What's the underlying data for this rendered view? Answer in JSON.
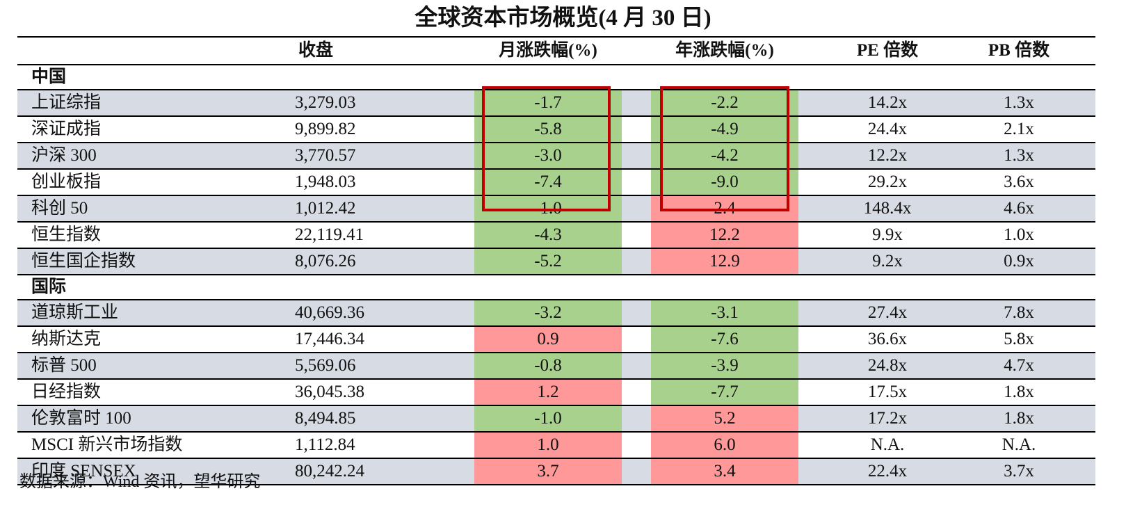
{
  "title": "全球资本市场概览(4 月 30 日)",
  "headers": {
    "close": "收盘",
    "month": "月涨跌幅(%)",
    "year": "年涨跌幅(%)",
    "pe": "PE 倍数",
    "pb": "PB 倍数"
  },
  "sections": [
    {
      "label": "中国",
      "rows": [
        {
          "name": "上证综指",
          "close": "3,279.03",
          "month": "-1.7",
          "year": "-2.2",
          "pe": "14.2x",
          "pb": "1.3x"
        },
        {
          "name": "深证成指",
          "close": "9,899.82",
          "month": "-5.8",
          "year": "-4.9",
          "pe": "24.4x",
          "pb": "2.1x"
        },
        {
          "name": "沪深 300",
          "close": "3,770.57",
          "month": "-3.0",
          "year": "-4.2",
          "pe": "12.2x",
          "pb": "1.3x"
        },
        {
          "name": "创业板指",
          "close": "1,948.03",
          "month": "-7.4",
          "year": "-9.0",
          "pe": "29.2x",
          "pb": "3.6x"
        },
        {
          "name": "科创 50",
          "close": "1,012.42",
          "month": "-1.0",
          "year": "2.4",
          "pe": "148.4x",
          "pb": "4.6x"
        },
        {
          "name": "恒生指数",
          "close": "22,119.41",
          "month": "-4.3",
          "year": "12.2",
          "pe": "9.9x",
          "pb": "1.0x"
        },
        {
          "name": "恒生国企指数",
          "close": "8,076.26",
          "month": "-5.2",
          "year": "12.9",
          "pe": "9.2x",
          "pb": "0.9x"
        }
      ]
    },
    {
      "label": "国际",
      "rows": [
        {
          "name": "道琼斯工业",
          "close": "40,669.36",
          "month": "-3.2",
          "year": "-3.1",
          "pe": "27.4x",
          "pb": "7.8x"
        },
        {
          "name": "纳斯达克",
          "close": "17,446.34",
          "month": "0.9",
          "year": "-7.6",
          "pe": "36.6x",
          "pb": "5.8x"
        },
        {
          "name": "标普 500",
          "close": "5,569.06",
          "month": "-0.8",
          "year": "-3.9",
          "pe": "24.8x",
          "pb": "4.7x"
        },
        {
          "name": "日经指数",
          "close": "36,045.38",
          "month": "1.2",
          "year": "-7.7",
          "pe": "17.5x",
          "pb": "1.8x"
        },
        {
          "name": "伦敦富时 100",
          "close": "8,494.85",
          "month": "-1.0",
          "year": "5.2",
          "pe": "17.2x",
          "pb": "1.8x"
        },
        {
          "name": "MSCI 新兴市场指数",
          "close": "1,112.84",
          "month": "1.0",
          "year": "6.0",
          "pe": "N.A.",
          "pb": "N.A."
        },
        {
          "name": "印度 SENSEX",
          "close": "80,242.24",
          "month": "3.7",
          "year": "3.4",
          "pe": "22.4x",
          "pb": "3.7x"
        }
      ]
    }
  ],
  "source": "数据来源：Wind 资讯，望华研究",
  "colors": {
    "negative": "#a9d18e",
    "positive": "#ff9999",
    "row_shade": "#d7dce4",
    "highlight_box": "#c00000"
  }
}
